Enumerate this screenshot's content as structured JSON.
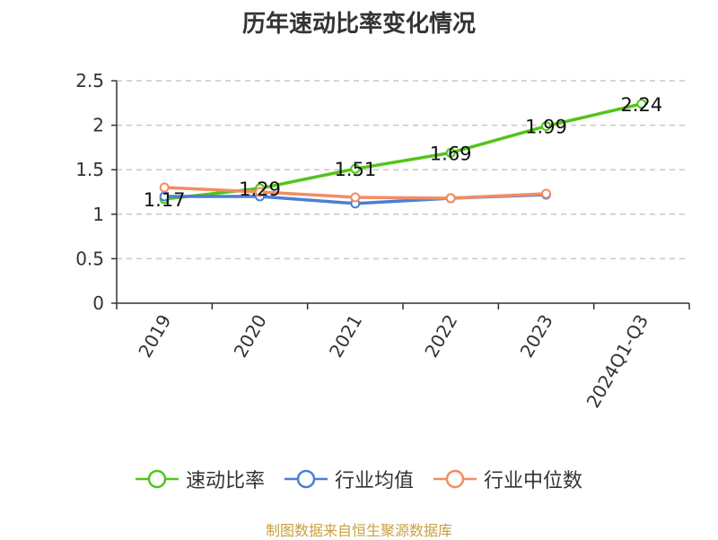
{
  "title": "历年速动比率变化情况",
  "source": "制图数据来自恒生聚源数据库",
  "chart_data": {
    "type": "line",
    "title": "历年速动比率变化情况",
    "categories": [
      "2019",
      "2020",
      "2021",
      "2022",
      "2023",
      "2024Q1-Q3"
    ],
    "ylim": [
      0,
      2.5
    ],
    "yticks": [
      "0",
      "0.5",
      "1",
      "1.5",
      "2",
      "2.5"
    ],
    "grid": "horizontal-dashed",
    "legend": "bottom",
    "series": [
      {
        "name": "速动比率",
        "color": "#52c41a",
        "values": [
          1.17,
          1.29,
          1.51,
          1.69,
          1.99,
          2.24
        ],
        "labels": [
          "1.17",
          "1.29",
          "1.51",
          "1.69",
          "1.99",
          "2.24"
        ]
      },
      {
        "name": "行业均值",
        "color": "#4a7fd6",
        "values": [
          1.2,
          1.2,
          1.12,
          1.18,
          1.22,
          null
        ]
      },
      {
        "name": "行业中位数",
        "color": "#f28c63",
        "values": [
          1.3,
          1.25,
          1.19,
          1.18,
          1.23,
          null
        ]
      }
    ]
  }
}
